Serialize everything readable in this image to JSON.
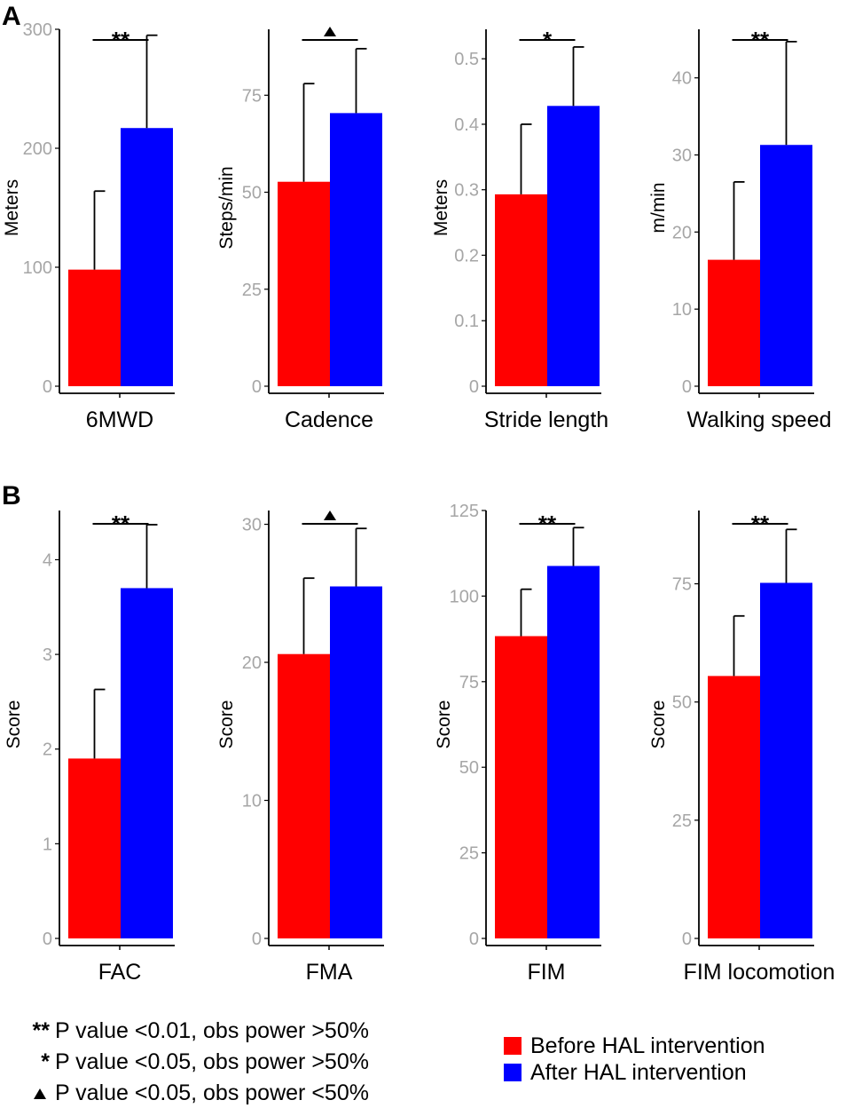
{
  "panels": [
    {
      "label": "A"
    },
    {
      "label": "B"
    }
  ],
  "colors": {
    "before": "#ff0000",
    "after": "#0000ff",
    "tick": "#a6a6a6",
    "axis": "#000000"
  },
  "chart_data": [
    {
      "type": "bar",
      "panel": "A",
      "xlabel": "6MWD",
      "ylabel": "Meters",
      "categories": [
        "Before HAL intervention",
        "After HAL intervention"
      ],
      "values": [
        98,
        217
      ],
      "errors": [
        66,
        78
      ],
      "ylim": [
        0,
        300
      ],
      "yticks": [
        0,
        100,
        200,
        300
      ],
      "significance": "**"
    },
    {
      "type": "bar",
      "panel": "A",
      "xlabel": "Cadence",
      "ylabel": "Steps/min",
      "categories": [
        "Before HAL intervention",
        "After HAL intervention"
      ],
      "values": [
        52.7,
        70.4
      ],
      "errors": [
        25.3,
        16.6
      ],
      "ylim": [
        0,
        92
      ],
      "yticks": [
        0,
        25,
        50,
        75
      ],
      "significance": "triangle"
    },
    {
      "type": "bar",
      "panel": "A",
      "xlabel": "Stride length",
      "ylabel": "Meters",
      "categories": [
        "Before HAL intervention",
        "After HAL intervention"
      ],
      "values": [
        0.293,
        0.428
      ],
      "errors": [
        0.107,
        0.09
      ],
      "ylim": [
        0,
        0.545
      ],
      "yticks": [
        0,
        0.1,
        0.2,
        0.3,
        0.4,
        0.5
      ],
      "significance": "*"
    },
    {
      "type": "bar",
      "panel": "A",
      "xlabel": "Walking speed",
      "ylabel": "m/min",
      "categories": [
        "Before HAL intervention",
        "After HAL intervention"
      ],
      "values": [
        16.4,
        31.3
      ],
      "errors": [
        10.1,
        13.4
      ],
      "ylim": [
        0,
        46.3
      ],
      "yticks": [
        0,
        10,
        20,
        30,
        40
      ],
      "significance": "**"
    },
    {
      "type": "bar",
      "panel": "B",
      "xlabel": "FAC",
      "ylabel": "Score",
      "categories": [
        "Before HAL intervention",
        "After HAL intervention"
      ],
      "values": [
        1.9,
        3.7
      ],
      "errors": [
        0.73,
        0.67
      ],
      "ylim": [
        0,
        4.52
      ],
      "yticks": [
        0,
        1,
        2,
        3,
        4
      ],
      "significance": "**"
    },
    {
      "type": "bar",
      "panel": "B",
      "xlabel": "FMA",
      "ylabel": "Score",
      "categories": [
        "Before HAL intervention",
        "After HAL intervention"
      ],
      "values": [
        20.6,
        25.5
      ],
      "errors": [
        5.5,
        4.2
      ],
      "ylim": [
        0,
        31
      ],
      "yticks": [
        0,
        10,
        20,
        30
      ],
      "significance": "triangle"
    },
    {
      "type": "bar",
      "panel": "B",
      "xlabel": "FIM",
      "ylabel": "Score",
      "categories": [
        "Before HAL intervention",
        "After HAL intervention"
      ],
      "values": [
        88.3,
        108.8
      ],
      "errors": [
        13.7,
        11.2
      ],
      "ylim": [
        0,
        125
      ],
      "yticks": [
        0,
        25,
        50,
        75,
        100,
        125
      ],
      "significance": "**"
    },
    {
      "type": "bar",
      "panel": "B",
      "xlabel": "FIM locomotion",
      "ylabel": "Score",
      "categories": [
        "Before HAL intervention",
        "After HAL intervention"
      ],
      "values": [
        55.5,
        75.2
      ],
      "errors": [
        12.7,
        11.3
      ],
      "ylim": [
        0,
        90.5
      ],
      "yticks": [
        0,
        25,
        50,
        75
      ],
      "significance": "**"
    }
  ],
  "significance_legend": [
    {
      "symbol": "**",
      "text": "P value <0.01, obs power >50%"
    },
    {
      "symbol": "*",
      "text": "P value <0.05, obs power >50%"
    },
    {
      "symbol": "triangle",
      "text": "P value <0.05, obs power <50%"
    }
  ],
  "color_legend": [
    {
      "label": "Before HAL intervention",
      "color": "#ff0000"
    },
    {
      "label": "After HAL intervention",
      "color": "#0000ff"
    }
  ]
}
